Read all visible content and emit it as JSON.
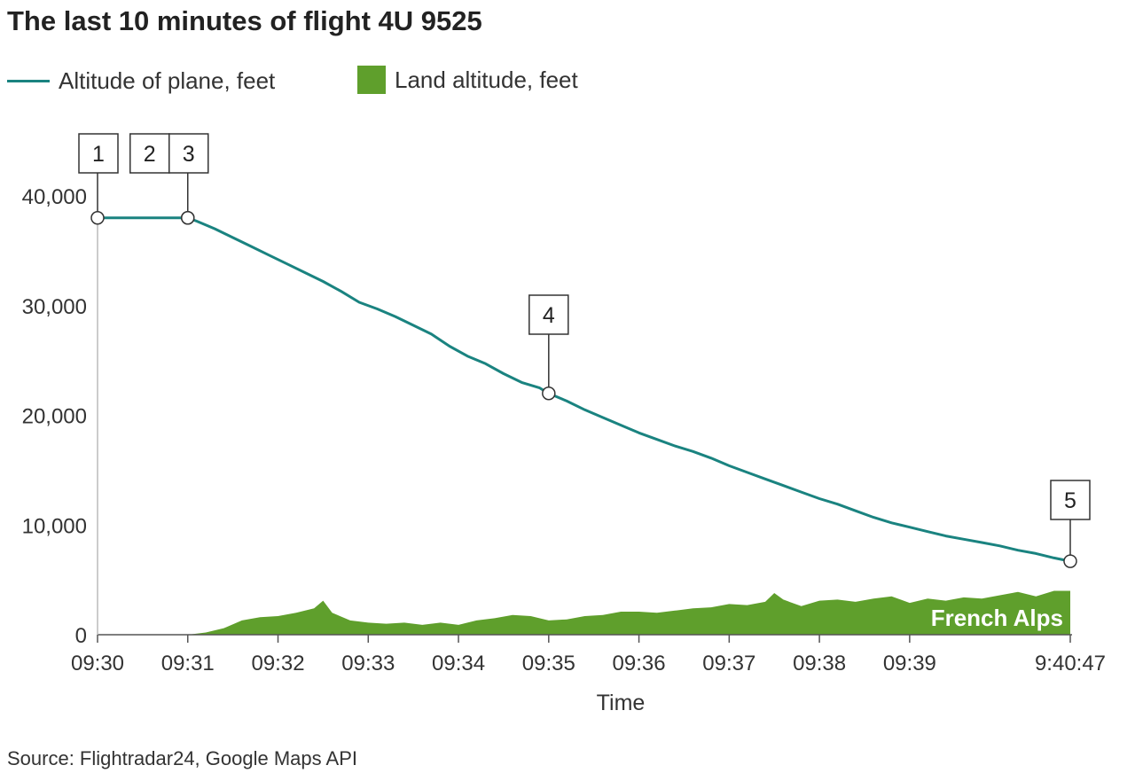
{
  "title": "The last 10 minutes of flight 4U 9525",
  "source": "Source: Flightradar24, Google Maps API",
  "legend": {
    "plane_label": "Altitude of plane, feet",
    "land_label": "Land altitude, feet"
  },
  "colors": {
    "plane": "#1a8380",
    "land": "#5f9f2c",
    "text": "#333333"
  },
  "chart_data": {
    "type": "area",
    "title": "The last 10 minutes of flight 4U 9525",
    "xlabel": "Time",
    "ylabel": "",
    "x_unit": "minutes after 09:30",
    "xlim": [
      0,
      10.78
    ],
    "ylim": [
      0,
      40000
    ],
    "yticks": [
      0,
      10000,
      20000,
      30000,
      40000
    ],
    "ytick_labels": [
      "0",
      "10,000",
      "20,000",
      "30,000",
      "40,000"
    ],
    "xticks": [
      0,
      1,
      2,
      3,
      4,
      5,
      6,
      7,
      8,
      9,
      10.78
    ],
    "xtick_labels": [
      "09:30",
      "09:31",
      "09:32",
      "09:33",
      "09:34",
      "09:35",
      "09:36",
      "09:37",
      "09:38",
      "09:39",
      "9:40:47"
    ],
    "grid": false,
    "legend_position": "top-left",
    "series": [
      {
        "name": "Altitude of plane, feet",
        "x": [
          0,
          0.5,
          1.0,
          1.1,
          1.3,
          1.5,
          1.7,
          1.9,
          2.1,
          2.3,
          2.5,
          2.7,
          2.9,
          3.1,
          3.3,
          3.5,
          3.7,
          3.9,
          4.1,
          4.3,
          4.5,
          4.7,
          4.9,
          5.0,
          5.2,
          5.4,
          5.6,
          5.8,
          6.0,
          6.2,
          6.4,
          6.6,
          6.8,
          7.0,
          7.2,
          7.4,
          7.6,
          7.8,
          8.0,
          8.2,
          8.4,
          8.6,
          8.8,
          9.0,
          9.2,
          9.4,
          9.6,
          9.8,
          10.0,
          10.2,
          10.4,
          10.6,
          10.78
        ],
        "y": [
          38000,
          38000,
          38000,
          37700,
          37000,
          36200,
          35400,
          34600,
          33800,
          33000,
          32200,
          31300,
          30300,
          29700,
          29000,
          28200,
          27400,
          26300,
          25400,
          24700,
          23800,
          23000,
          22500,
          22000,
          21300,
          20500,
          19800,
          19100,
          18400,
          17800,
          17200,
          16700,
          16100,
          15400,
          14800,
          14200,
          13600,
          13000,
          12400,
          11900,
          11300,
          10700,
          10200,
          9800,
          9400,
          9000,
          8700,
          8400,
          8100,
          7700,
          7400,
          7000,
          6700
        ]
      },
      {
        "name": "Land altitude, feet",
        "x": [
          1.0,
          1.2,
          1.4,
          1.6,
          1.8,
          2.0,
          2.2,
          2.4,
          2.5,
          2.6,
          2.8,
          3.0,
          3.2,
          3.4,
          3.6,
          3.8,
          4.0,
          4.2,
          4.4,
          4.6,
          4.8,
          5.0,
          5.2,
          5.4,
          5.6,
          5.8,
          6.0,
          6.2,
          6.4,
          6.6,
          6.8,
          7.0,
          7.2,
          7.4,
          7.5,
          7.6,
          7.8,
          8.0,
          8.2,
          8.4,
          8.6,
          8.8,
          9.0,
          9.2,
          9.4,
          9.6,
          9.8,
          10.0,
          10.2,
          10.4,
          10.6,
          10.78
        ],
        "y": [
          0,
          200,
          600,
          1300,
          1600,
          1700,
          2000,
          2400,
          3100,
          2000,
          1300,
          1100,
          1000,
          1100,
          900,
          1100,
          900,
          1300,
          1500,
          1800,
          1700,
          1300,
          1400,
          1700,
          1800,
          2100,
          2100,
          2000,
          2200,
          2400,
          2500,
          2800,
          2700,
          3000,
          3800,
          3200,
          2600,
          3100,
          3200,
          3000,
          3300,
          3500,
          2900,
          3300,
          3100,
          3400,
          3300,
          3600,
          3900,
          3500,
          4000,
          4000
        ]
      }
    ],
    "annotations": [
      {
        "label": "1",
        "x": 0,
        "y": 38000
      },
      {
        "label": "2",
        "x": 1.0,
        "y": 38000
      },
      {
        "label": "3",
        "x": 1.0,
        "y": 38000
      },
      {
        "label": "4",
        "x": 5.0,
        "y": 22000
      },
      {
        "label": "5",
        "x": 10.78,
        "y": 6700
      }
    ],
    "area_label": "French Alps"
  }
}
